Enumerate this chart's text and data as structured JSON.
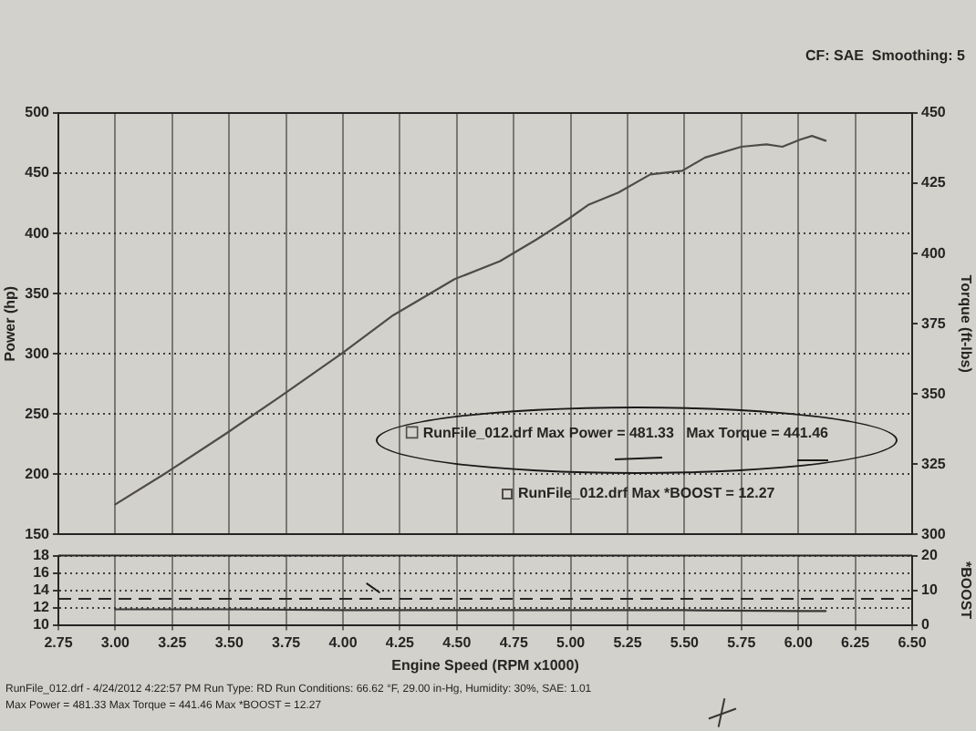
{
  "chart_data": [
    {
      "type": "line",
      "ylabel": "Power (hp)",
      "y2label": "Torque (ft-lbs)",
      "annotations": [
        "CF: SAE  Smoothing: 5",
        "RunFile_012.drf Max *BOOST = 12.27"
      ],
      "series": [
        {
          "name": "RunFile_012.drf Max Power = 481.33   Max Torque = 441.46",
          "color": "#4f4c48",
          "x": [
            3.0,
            3.23,
            3.48,
            3.72,
            4.0,
            4.22,
            4.49,
            4.69,
            4.85,
            4.99,
            5.08,
            5.21,
            5.35,
            5.49,
            5.59,
            5.75,
            5.86,
            5.93,
            6.01,
            6.06,
            6.12
          ],
          "values": [
            175,
            202,
            233,
            264,
            301,
            332,
            362,
            377,
            395,
            412,
            424,
            434,
            449,
            452,
            463,
            472,
            474,
            472,
            478,
            481,
            477
          ]
        }
      ],
      "xlim": [
        2.75,
        6.5
      ],
      "xticks": [
        2.75,
        3,
        3.25,
        3.5,
        3.75,
        4,
        4.25,
        4.5,
        4.75,
        5,
        5.25,
        5.5,
        5.75,
        6,
        6.25,
        6.5
      ],
      "ylim": [
        150,
        500
      ],
      "yticks": [
        150,
        200,
        250,
        300,
        350,
        400,
        450,
        500
      ],
      "y2lim": [
        300,
        450
      ],
      "y2ticks": [
        300,
        325,
        350,
        375,
        400,
        425,
        450
      ],
      "tick_labels": "y",
      "grid": true,
      "legend": "bottom right"
    },
    {
      "type": "line",
      "xlabel": "Engine Speed (RPM x1000)",
      "y2label": "*BOOST",
      "annotations": [
        "RunFile_012.drf - 4/24/2012 4:22:57 PM Run Type: RD Run Conditions: 66.62 °F, 29.00 in-Hg, Humidity: 30%, SAE: 1.01",
        "Max Power = 481.33 Max Torque = 441.46 Max *BOOST = 12.27"
      ],
      "series": [
        {
          "color": "#3a3836",
          "x": [
            3.0,
            3.5,
            4.0,
            4.5,
            5.0,
            5.5,
            6.0,
            6.12
          ],
          "values": [
            11.8,
            11.8,
            11.7,
            11.7,
            11.7,
            11.7,
            11.6,
            11.6
          ]
        }
      ],
      "ref_lines": [
        {
          "axis": "y",
          "value": 13,
          "line_style": "dashed"
        }
      ],
      "xlim": [
        2.75,
        6.5
      ],
      "xticks": [
        2.75,
        {
          "value": 3,
          "label": "3.00"
        },
        3.25,
        {
          "value": 3.5,
          "label": "3.50"
        },
        3.75,
        {
          "value": 4,
          "label": "4.00"
        },
        4.25,
        {
          "value": 4.5,
          "label": "4.50"
        },
        4.75,
        {
          "value": 5,
          "label": "5.00"
        },
        5.25,
        {
          "value": 5.5,
          "label": "5.50"
        },
        5.75,
        {
          "value": 6,
          "label": "6.00"
        },
        6.25,
        {
          "value": 6.5,
          "label": "6.50"
        }
      ],
      "ylim": [
        10,
        18
      ],
      "yticks": [
        10,
        12,
        14,
        16,
        18
      ],
      "y2lim": [
        0,
        20
      ],
      "y2ticks": [
        0,
        10,
        20
      ],
      "grid": true
    }
  ]
}
